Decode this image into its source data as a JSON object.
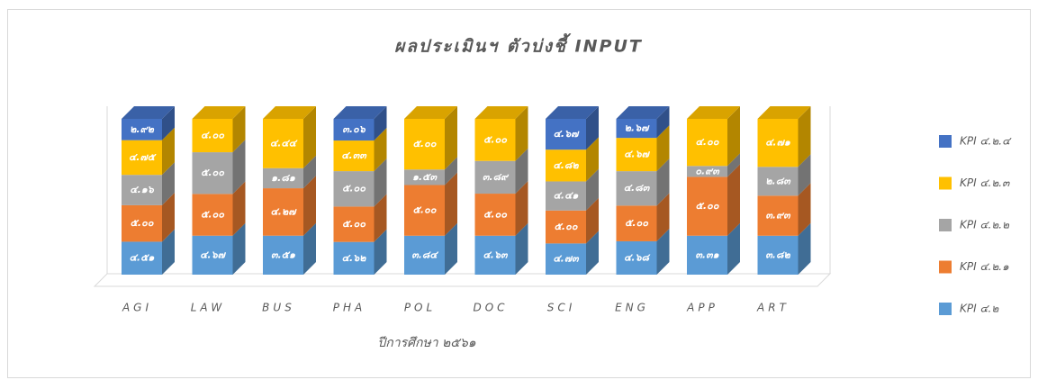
{
  "chart_data": {
    "type": "stacked-bar-3d",
    "title": "ผลประเมินฯ ตัวบ่งชี้ INPUT",
    "x_label": "ปีการศึกษา ๒๕๖๑",
    "categories": [
      "AGI",
      "LAW",
      "BUS",
      "PHA",
      "POL",
      "DOC",
      "SCI",
      "ENG",
      "APP",
      "ART"
    ],
    "series": [
      {
        "name": "KPI ๔.๒",
        "color": "#5b9bd5",
        "values": [
          4.51,
          4.67,
          3.51,
          4.62,
          3.84,
          4.63,
          4.73,
          4.68,
          3.31,
          3.82
        ],
        "value_labels": [
          "๔.๕๑",
          "๔.๖๗",
          "๓.๕๑",
          "๔.๖๒",
          "๓.๘๔",
          "๔.๖๓",
          "๔.๗๓",
          "๔.๖๘",
          "๓.๓๑",
          "๓.๘๒"
        ]
      },
      {
        "name": "KPI ๔.๒.๑",
        "color": "#ed7d31",
        "values": [
          5.0,
          5.0,
          4.27,
          5.0,
          5.0,
          5.0,
          5.0,
          5.0,
          5.0,
          3.93
        ],
        "value_labels": [
          "๕.๐๐",
          "๕.๐๐",
          "๔.๒๗",
          "๕.๐๐",
          "๕.๐๐",
          "๕.๐๐",
          "๕.๐๐",
          "๕.๐๐",
          "๕.๐๐",
          "๓.๙๓"
        ]
      },
      {
        "name": "KPI ๔.๒.๒",
        "color": "#a5a5a5",
        "values": [
          4.16,
          5.0,
          1.81,
          5.0,
          1.53,
          3.89,
          4.41,
          4.83,
          0.93,
          2.83
        ],
        "value_labels": [
          "๔.๑๖",
          "๕.๐๐",
          "๑.๘๑",
          "๕.๐๐",
          "๑.๕๓",
          "๓.๘๙",
          "๔.๔๑",
          "๔.๘๓",
          "๐.๙๓",
          "๒.๘๓"
        ]
      },
      {
        "name": "KPI ๔.๒.๓",
        "color": "#ffc000",
        "values": [
          4.75,
          4.0,
          4.44,
          4.33,
          5.0,
          5.0,
          4.82,
          4.67,
          4.0,
          4.71
        ],
        "value_labels": [
          "๔.๗๕",
          "๔.๐๐",
          "๔.๔๔",
          "๔.๓๓",
          "๕.๐๐",
          "๕.๐๐",
          "๔.๘๒",
          "๔.๖๗",
          "๔.๐๐",
          "๔.๗๑"
        ]
      },
      {
        "name": "KPI ๔.๒.๔",
        "color": "#4472c4",
        "values": [
          2.92,
          null,
          null,
          3.06,
          null,
          null,
          4.67,
          2.67,
          null,
          null
        ],
        "value_labels": [
          "๒.๙๒",
          null,
          null,
          "๓.๐๖",
          null,
          null,
          "๔.๖๗",
          "๒.๖๗",
          null,
          null
        ]
      }
    ],
    "legend": "right"
  }
}
